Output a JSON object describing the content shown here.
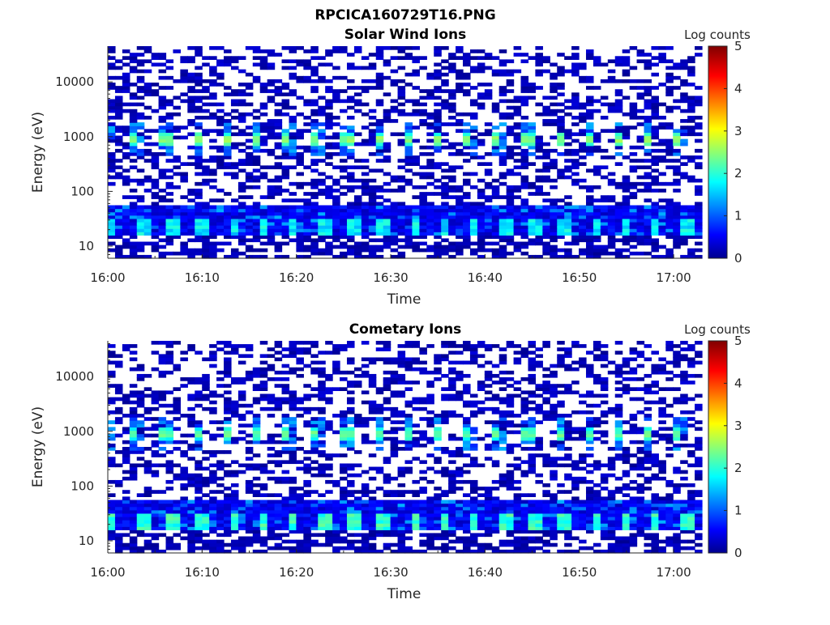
{
  "figure": {
    "title": "RPCICA160729T16.PNG"
  },
  "chart_data": [
    {
      "type": "heatmap",
      "title": "Solar Wind Ions",
      "xlabel": "Time",
      "ylabel": "Energy (eV)",
      "x_scale": "time",
      "y_scale": "log",
      "xlim": [
        "16:00",
        "17:03"
      ],
      "ylim": [
        6,
        45000
      ],
      "x_ticks": [
        "16:00",
        "16:10",
        "16:20",
        "16:30",
        "16:40",
        "16:50",
        "17:00"
      ],
      "y_ticks": [
        10,
        100,
        1000,
        10000
      ],
      "y_tick_labels": [
        "10",
        "100",
        "1000",
        "10000"
      ],
      "colorbar": {
        "label": "Log counts",
        "range": [
          0,
          5
        ],
        "ticks": [
          0,
          1,
          2,
          3,
          4,
          5
        ],
        "colormap": "jet"
      },
      "features": {
        "periodic_peak_energy_eV": 900,
        "periodic_peak_interval_min": 3.2,
        "periodic_peak_log_counts": 2.5,
        "low_energy_band_eV": [
          15,
          55
        ],
        "low_energy_band_log_counts": 1.5
      },
      "grid": false
    },
    {
      "type": "heatmap",
      "title": "Cometary Ions",
      "xlabel": "Time",
      "ylabel": "Energy (eV)",
      "x_scale": "time",
      "y_scale": "log",
      "xlim": [
        "16:00",
        "17:03"
      ],
      "ylim": [
        6,
        45000
      ],
      "x_ticks": [
        "16:00",
        "16:10",
        "16:20",
        "16:30",
        "16:40",
        "16:50",
        "17:00"
      ],
      "y_ticks": [
        10,
        100,
        1000,
        10000
      ],
      "y_tick_labels": [
        "10",
        "100",
        "1000",
        "10000"
      ],
      "colorbar": {
        "label": "Log counts",
        "range": [
          0,
          5
        ],
        "ticks": [
          0,
          1,
          2,
          3,
          4,
          5
        ],
        "colormap": "jet"
      },
      "features": {
        "periodic_peak_energy_eV": 900,
        "periodic_peak_interval_min": 3.2,
        "periodic_peak_log_counts": 2.3,
        "low_energy_band_eV": [
          15,
          55
        ],
        "low_energy_band_log_counts": 1.8
      },
      "grid": false
    }
  ],
  "colors": {
    "axis": "#262626",
    "background": "#ffffff"
  }
}
